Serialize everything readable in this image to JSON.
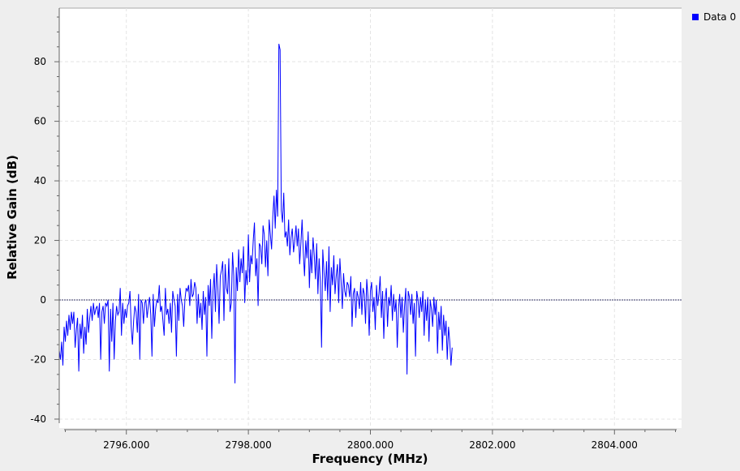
{
  "chart_data": {
    "type": "line",
    "title": "",
    "xlabel": "Frequency (MHz)",
    "ylabel": "Relative Gain (dB)",
    "xlim": [
      2794.9,
      2805.1
    ],
    "ylim": [
      -43,
      98
    ],
    "x_ticks": [
      2796,
      2798,
      2800,
      2802,
      2804
    ],
    "x_tick_labels": [
      "2796.000",
      "2798.000",
      "2800.000",
      "2802.000",
      "2804.000"
    ],
    "y_ticks": [
      -40,
      -20,
      0,
      20,
      40,
      60,
      80
    ],
    "y_tick_labels": [
      "-40",
      "-20",
      "0",
      "20",
      "40",
      "60",
      "80"
    ],
    "grid": true,
    "legend_position": "top-right",
    "reference_line_y": 0,
    "series": [
      {
        "name": "Data 0",
        "color": "#0000ff",
        "x_start": 2794.9,
        "x_step": 0.02,
        "y": [
          -17,
          -20,
          -14,
          -22,
          -9,
          -14,
          -7,
          -12,
          -5,
          -10,
          -4,
          -8,
          -4,
          -16,
          -10,
          -6,
          -24,
          -8,
          -13,
          -5,
          -18,
          -9,
          -15,
          -3,
          -11,
          -6,
          -2,
          -7,
          -1,
          -5,
          -3,
          -2,
          -6,
          -1,
          -20,
          -4,
          -2,
          -8,
          -1,
          -2,
          0,
          -24,
          -3,
          -14,
          -1,
          -20,
          -7,
          -2,
          -5,
          -4,
          4,
          -12,
          -1,
          -8,
          -3,
          -6,
          -2,
          -1,
          3,
          -9,
          -15,
          -7,
          -2,
          -4,
          -11,
          2,
          -20,
          0,
          -1,
          -8,
          -1,
          0,
          -6,
          -2,
          1,
          -5,
          -19,
          2,
          -9,
          -3,
          0,
          -1,
          5,
          -4,
          -2,
          -7,
          -12,
          4,
          -5,
          -3,
          -8,
          -1,
          -11,
          3,
          0,
          -2,
          -19,
          2,
          -7,
          4,
          0,
          -2,
          -9,
          0,
          4,
          3,
          5,
          -2,
          7,
          1,
          2,
          6,
          4,
          -8,
          2,
          -6,
          -1,
          -10,
          3,
          -5,
          1,
          -19,
          5,
          -2,
          7,
          -13,
          3,
          9,
          -4,
          12,
          4,
          -8,
          8,
          10,
          13,
          -7,
          12,
          4,
          2,
          14,
          -4,
          -1,
          16,
          8,
          -28,
          11,
          3,
          17,
          6,
          14,
          9,
          18,
          -1,
          10,
          5,
          22,
          6,
          15,
          12,
          20,
          26,
          8,
          14,
          -2,
          19,
          18,
          12,
          25,
          22,
          11,
          20,
          8,
          27,
          22,
          17,
          28,
          35,
          24,
          37,
          28,
          86,
          84,
          30,
          26,
          36,
          21,
          23,
          18,
          27,
          15,
          21,
          24,
          16,
          20,
          25,
          18,
          24,
          12,
          19,
          27,
          16,
          8,
          20,
          14,
          23,
          4,
          17,
          9,
          21,
          15,
          7,
          19,
          2,
          14,
          6,
          -16,
          17,
          9,
          3,
          13,
          0,
          18,
          -4,
          11,
          5,
          15,
          2,
          8,
          12,
          -1,
          14,
          6,
          -3,
          9,
          3,
          1,
          6,
          5,
          1,
          8,
          -9,
          2,
          4,
          -6,
          3,
          1,
          -3,
          6,
          -5,
          4,
          2,
          -8,
          7,
          1,
          -12,
          3,
          6,
          -4,
          1,
          -10,
          5,
          -2,
          2,
          8,
          -6,
          3,
          -13,
          0,
          4,
          -9,
          1,
          -2,
          5,
          -7,
          2,
          -4,
          0,
          -16,
          -3,
          2,
          -6,
          1,
          -11,
          -2,
          4,
          -25,
          3,
          1,
          -5,
          2,
          -8,
          -1,
          -19,
          3,
          0,
          -6,
          1,
          -4,
          3,
          -12,
          0,
          -7,
          1,
          -14,
          0,
          -3,
          -9,
          1,
          -5,
          0,
          -18,
          -4,
          -10,
          -2,
          -17,
          -5,
          -12,
          -7,
          -20,
          -9,
          -14,
          -22,
          -16
        ]
      }
    ]
  }
}
